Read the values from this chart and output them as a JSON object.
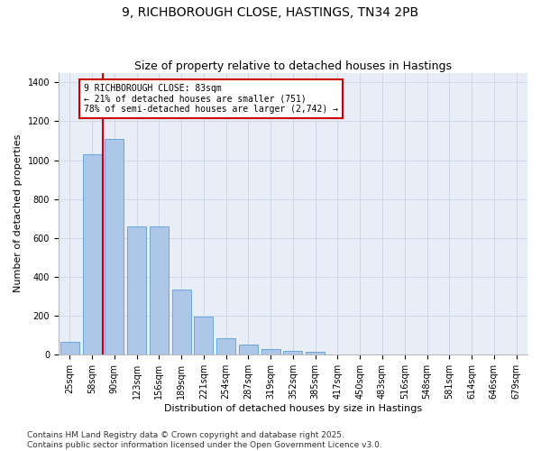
{
  "title": "9, RICHBOROUGH CLOSE, HASTINGS, TN34 2PB",
  "subtitle": "Size of property relative to detached houses in Hastings",
  "xlabel": "Distribution of detached houses by size in Hastings",
  "ylabel": "Number of detached properties",
  "bins": [
    "25sqm",
    "58sqm",
    "90sqm",
    "123sqm",
    "156sqm",
    "189sqm",
    "221sqm",
    "254sqm",
    "287sqm",
    "319sqm",
    "352sqm",
    "385sqm",
    "417sqm",
    "450sqm",
    "483sqm",
    "516sqm",
    "548sqm",
    "581sqm",
    "614sqm",
    "646sqm",
    "679sqm"
  ],
  "values": [
    65,
    1030,
    1110,
    660,
    660,
    335,
    195,
    85,
    50,
    25,
    20,
    15,
    0,
    0,
    0,
    0,
    0,
    0,
    0,
    0,
    0
  ],
  "bar_color": "#aec6e8",
  "bar_edge_color": "#5a9fd4",
  "annotation_text": "9 RICHBOROUGH CLOSE: 83sqm\n← 21% of detached houses are smaller (751)\n78% of semi-detached houses are larger (2,742) →",
  "annotation_box_color": "#ffffff",
  "annotation_box_edge": "#cc0000",
  "redline_color": "#cc0000",
  "grid_color": "#d0d8e8",
  "bg_color": "#e8eef8",
  "ylim": [
    0,
    1450
  ],
  "yticks": [
    0,
    200,
    400,
    600,
    800,
    1000,
    1200,
    1400
  ],
  "title_fontsize": 10,
  "subtitle_fontsize": 9,
  "label_fontsize": 8,
  "tick_fontsize": 7,
  "annot_fontsize": 7,
  "footer_fontsize": 6.5,
  "footer": "Contains HM Land Registry data © Crown copyright and database right 2025.\nContains public sector information licensed under the Open Government Licence v3.0."
}
